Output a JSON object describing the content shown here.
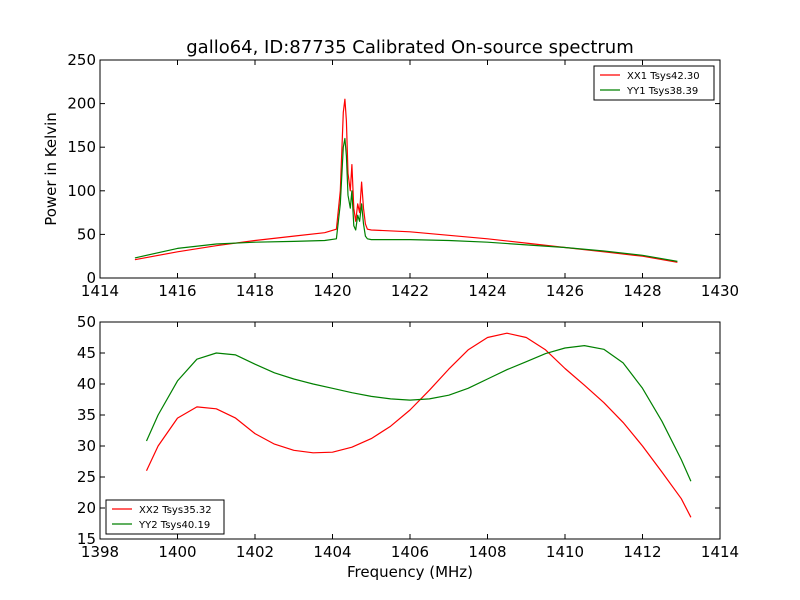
{
  "window": {
    "title": "gallo64, ID:87735 Calibrated On-source spectrum"
  },
  "colors": {
    "red": "#ff0000",
    "green": "#008000",
    "axis": "#000000",
    "background": "#ffffff"
  },
  "chart_data": [
    {
      "type": "line",
      "title": "gallo64, ID:87735 Calibrated On-source spectrum",
      "xlabel": "",
      "ylabel": "Power in Kelvin",
      "xlim": [
        1414,
        1430
      ],
      "ylim": [
        0,
        250
      ],
      "xticks": [
        1414,
        1416,
        1418,
        1420,
        1422,
        1424,
        1426,
        1428,
        1430
      ],
      "yticks": [
        0,
        50,
        100,
        150,
        200,
        250
      ],
      "legend": "top-right",
      "series": [
        {
          "name": "XX1 Tsys42.30",
          "color": "#ff0000",
          "x": [
            1414.9,
            1416,
            1417,
            1418,
            1419,
            1419.8,
            1420.1,
            1420.2,
            1420.28,
            1420.32,
            1420.36,
            1420.4,
            1420.46,
            1420.5,
            1420.55,
            1420.6,
            1420.65,
            1420.7,
            1420.75,
            1420.8,
            1420.85,
            1420.9,
            1421,
            1422,
            1423,
            1424,
            1425,
            1426,
            1427,
            1428,
            1428.9
          ],
          "y": [
            21,
            30,
            37,
            43,
            48,
            52,
            56,
            100,
            190,
            205,
            180,
            120,
            100,
            130,
            80,
            65,
            85,
            75,
            110,
            80,
            62,
            56,
            55,
            53,
            49,
            45,
            40,
            35,
            30,
            25,
            18
          ]
        },
        {
          "name": "YY1 Tsys38.39",
          "color": "#008000",
          "x": [
            1414.9,
            1416,
            1417,
            1418,
            1419,
            1419.8,
            1420.1,
            1420.2,
            1420.28,
            1420.32,
            1420.36,
            1420.4,
            1420.46,
            1420.5,
            1420.55,
            1420.6,
            1420.65,
            1420.7,
            1420.75,
            1420.8,
            1420.85,
            1420.9,
            1421,
            1422,
            1423,
            1424,
            1425,
            1426,
            1427,
            1428,
            1428.9
          ],
          "y": [
            23,
            34,
            39,
            41,
            42,
            43,
            45,
            85,
            150,
            160,
            140,
            95,
            80,
            100,
            60,
            55,
            72,
            65,
            85,
            62,
            48,
            45,
            44,
            44,
            43,
            41,
            38,
            35,
            31,
            26,
            19
          ]
        }
      ]
    },
    {
      "type": "line",
      "title": "",
      "xlabel": "Frequency (MHz)",
      "ylabel": "",
      "xlim": [
        1398,
        1414
      ],
      "ylim": [
        15,
        50
      ],
      "xticks": [
        1398,
        1400,
        1402,
        1404,
        1406,
        1408,
        1410,
        1412,
        1414
      ],
      "yticks": [
        15,
        20,
        25,
        30,
        35,
        40,
        45,
        50
      ],
      "legend": "bottom-left",
      "series": [
        {
          "name": "XX2 Tsys35.32",
          "color": "#ff0000",
          "x": [
            1399.2,
            1399.5,
            1400,
            1400.5,
            1401,
            1401.5,
            1402,
            1402.5,
            1403,
            1403.5,
            1404,
            1404.5,
            1405,
            1405.5,
            1406,
            1406.5,
            1407,
            1407.5,
            1408,
            1408.5,
            1409,
            1409.5,
            1410,
            1410.5,
            1411,
            1411.5,
            1412,
            1412.5,
            1413,
            1413.25
          ],
          "y": [
            26,
            30,
            34.5,
            36.3,
            36,
            34.5,
            32,
            30.3,
            29.3,
            28.9,
            29,
            29.8,
            31.2,
            33.2,
            35.8,
            39,
            42.4,
            45.5,
            47.5,
            48.2,
            47.5,
            45.5,
            42.5,
            39.8,
            37,
            33.8,
            30,
            25.8,
            21.5,
            18.5
          ]
        },
        {
          "name": "YY2 Tsys40.19",
          "color": "#008000",
          "x": [
            1399.2,
            1399.5,
            1400,
            1400.5,
            1401,
            1401.5,
            1402,
            1402.5,
            1403,
            1403.5,
            1404,
            1404.5,
            1405,
            1405.5,
            1406,
            1406.5,
            1407,
            1407.5,
            1408,
            1408.5,
            1409,
            1409.5,
            1410,
            1410.5,
            1411,
            1411.5,
            1412,
            1412.5,
            1413,
            1413.25
          ],
          "y": [
            30.8,
            35,
            40.5,
            44,
            45,
            44.7,
            43.2,
            41.8,
            40.8,
            40,
            39.3,
            38.6,
            38,
            37.6,
            37.4,
            37.6,
            38.2,
            39.3,
            40.8,
            42.3,
            43.6,
            44.9,
            45.8,
            46.2,
            45.6,
            43.4,
            39.3,
            34,
            27.8,
            24.3
          ]
        }
      ]
    }
  ]
}
